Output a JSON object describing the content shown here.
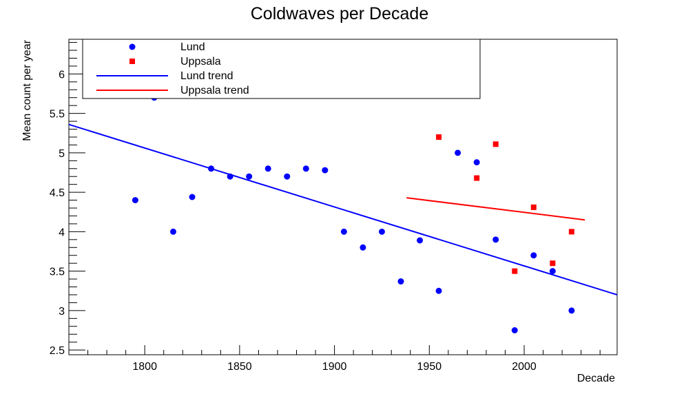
{
  "chart_data": {
    "type": "scatter",
    "title": "Coldwaves per Decade",
    "xlabel": "Decade",
    "ylabel": "Mean count per year",
    "xlim": [
      1760,
      2049
    ],
    "ylim": [
      2.44,
      6.44
    ],
    "xticks": [
      1800,
      1850,
      1900,
      1950,
      2000
    ],
    "xtick_labels": [
      "1800",
      "1850",
      "1900",
      "1950",
      "2000"
    ],
    "yticks": [
      2.5,
      3,
      3.5,
      4,
      4.5,
      5,
      5.5,
      6
    ],
    "ytick_labels": [
      "2.5",
      "3",
      "3.5",
      "4",
      "4.5",
      "5",
      "5.5",
      "6"
    ],
    "grid": false,
    "legend_position": "top-left",
    "series": [
      {
        "name": "Lund",
        "kind": "points",
        "marker": "circle",
        "color": "#0000ff",
        "x": [
          1795,
          1805,
          1815,
          1825,
          1835,
          1845,
          1855,
          1865,
          1875,
          1885,
          1895,
          1905,
          1915,
          1925,
          1935,
          1945,
          1955,
          1965,
          1975,
          1985,
          1995,
          2005,
          2015,
          2025
        ],
        "y": [
          4.4,
          5.7,
          4.0,
          4.44,
          4.8,
          4.7,
          4.7,
          4.8,
          4.7,
          4.8,
          4.78,
          4.0,
          3.8,
          4.0,
          3.37,
          3.89,
          3.25,
          5.0,
          4.88,
          3.9,
          2.75,
          3.7,
          3.5,
          3.0
        ]
      },
      {
        "name": "Uppsala",
        "kind": "points",
        "marker": "square",
        "color": "#ff0000",
        "x": [
          1955,
          1975,
          1985,
          1995,
          2005,
          2015,
          2025
        ],
        "y": [
          5.2,
          4.68,
          5.11,
          3.5,
          4.31,
          3.6,
          4.0
        ]
      },
      {
        "name": "Lund trend",
        "kind": "line",
        "color": "#0000ff",
        "x": [
          1760,
          2049
        ],
        "y": [
          5.36,
          3.2
        ]
      },
      {
        "name": "Uppsala trend",
        "kind": "line",
        "color": "#ff0000",
        "x": [
          1938,
          2032
        ],
        "y": [
          4.43,
          4.15
        ]
      }
    ]
  }
}
